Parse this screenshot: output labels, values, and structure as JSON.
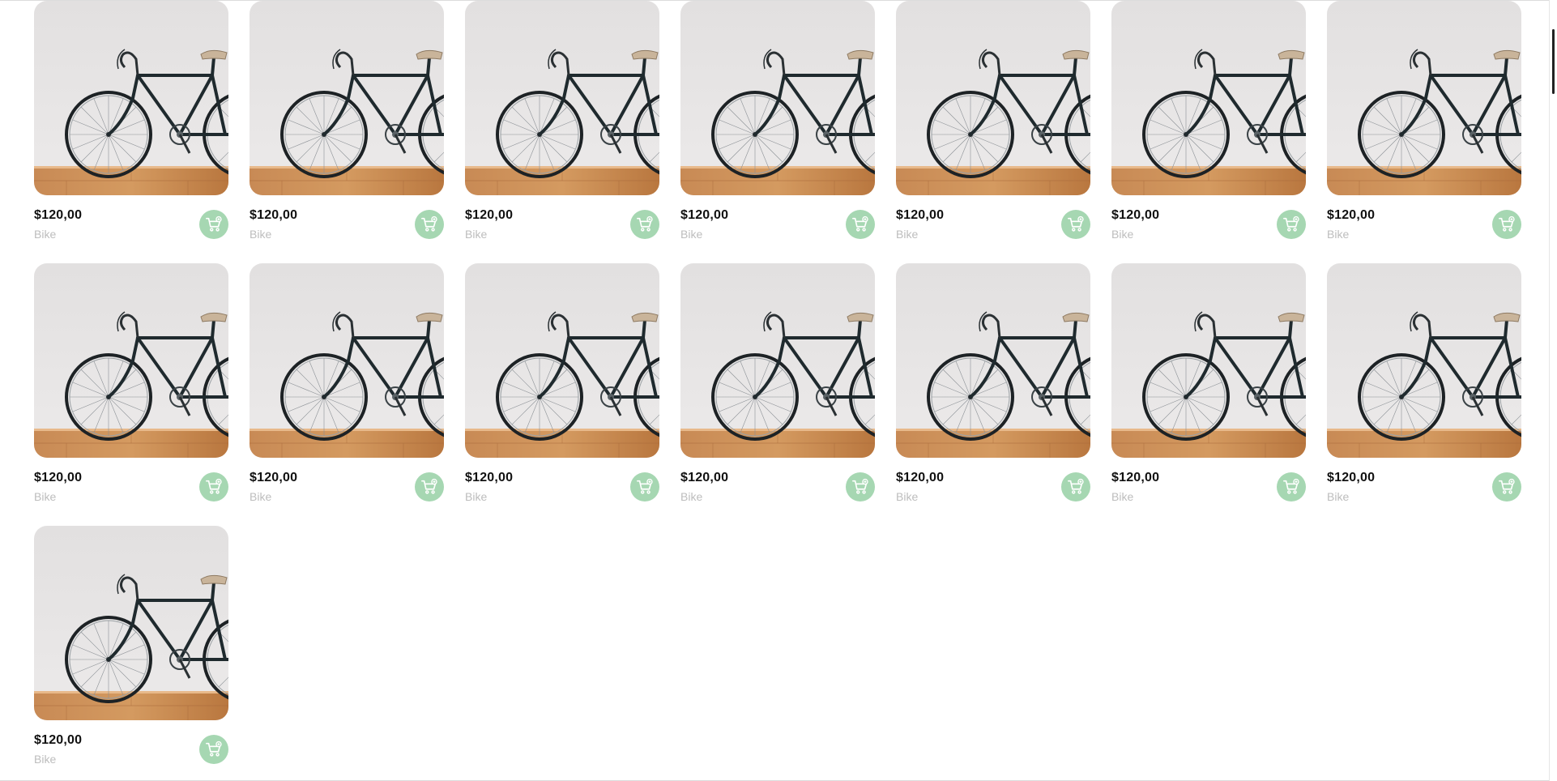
{
  "products": [
    {
      "price": "$120,00",
      "name": "Bike"
    },
    {
      "price": "$120,00",
      "name": "Bike"
    },
    {
      "price": "$120,00",
      "name": "Bike"
    },
    {
      "price": "$120,00",
      "name": "Bike"
    },
    {
      "price": "$120,00",
      "name": "Bike"
    },
    {
      "price": "$120,00",
      "name": "Bike"
    },
    {
      "price": "$120,00",
      "name": "Bike"
    },
    {
      "price": "$120,00",
      "name": "Bike"
    },
    {
      "price": "$120,00",
      "name": "Bike"
    },
    {
      "price": "$120,00",
      "name": "Bike"
    },
    {
      "price": "$120,00",
      "name": "Bike"
    },
    {
      "price": "$120,00",
      "name": "Bike"
    },
    {
      "price": "$120,00",
      "name": "Bike"
    },
    {
      "price": "$120,00",
      "name": "Bike"
    },
    {
      "price": "$120,00",
      "name": "Bike"
    }
  ],
  "theme": {
    "accent": "#a6d7b2",
    "price_color": "#111111",
    "name_color": "#bdbdbd"
  },
  "icons": {
    "cart": "cart-add-icon",
    "photo": "bike-photo"
  }
}
